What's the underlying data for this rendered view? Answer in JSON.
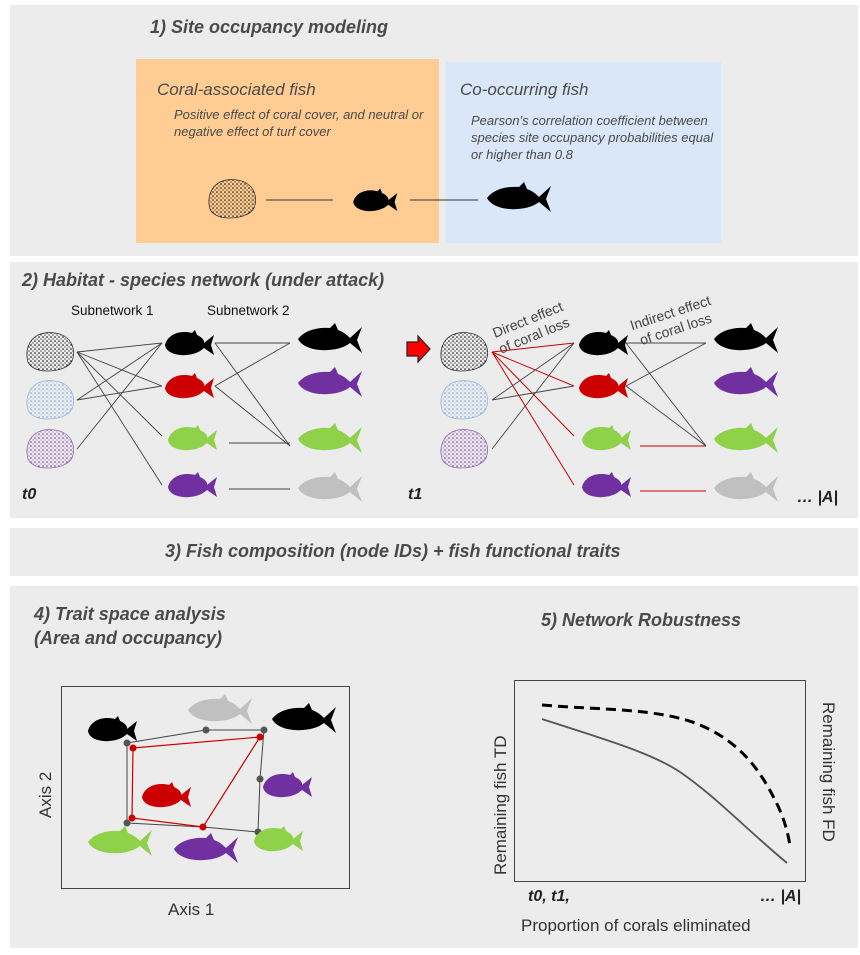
{
  "panel1": {
    "title": "1)   Site occupancy  modeling",
    "coral_box": {
      "heading": "Coral-associated fish",
      "body": "Positive effect of coral cover, and neutral or negative effect of turf cover"
    },
    "cooccur_box": {
      "heading": "Co-occurring fish",
      "body": "Pearson’s correlation coefficient between species site occupancy probabilities  equal or higher than 0.8"
    }
  },
  "panel2": {
    "title": "2) Habitat - species  network (under attack)",
    "subnetwork1": "Subnetwork 1",
    "subnetwork2": "Subnetwork 2",
    "direct_effect": "Direct effect of coral loss",
    "direct_effect_line1": "Direct effect",
    "direct_effect_line2": "of coral loss",
    "indirect_effect_line1": "Indirect effect",
    "indirect_effect_line2": "of coral loss",
    "t0": "t0",
    "t1": "t1",
    "tA": "… |A|"
  },
  "panel3": {
    "title": "3) Fish composition  (node IDs) + fish functional traits"
  },
  "panel4": {
    "title_line1": "4) Trait space analysis",
    "title_line2": "(Area and occupancy)",
    "xlabel": "Axis 1",
    "ylabel": "Axis 2"
  },
  "panel5": {
    "title": "5) Network Robustness",
    "ylabel_left": "Remaining  fish TD",
    "ylabel_right": "Remaining  fish FD",
    "xtick_left": "t0, t1,",
    "xtick_right": "… |A|",
    "xlabel": "Proportion of corals eliminated"
  },
  "colors": {
    "panel_bg": "#ececec",
    "coral_box": "#ffcc93",
    "cooccur_box": "#dae7f8",
    "red": "#cc0000",
    "purple": "#7030a0",
    "green": "#8fd24a",
    "gray_fish": "#c0c0c0",
    "black": "#000000"
  }
}
